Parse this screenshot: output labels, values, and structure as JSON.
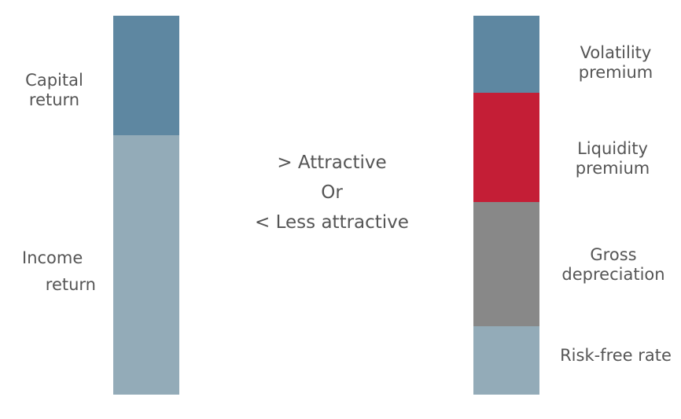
{
  "left_bar": {
    "segments": [
      {
        "name": "capital-return",
        "color": "#5e87a1"
      },
      {
        "name": "income-return",
        "color": "#93abb8"
      }
    ],
    "labels": {
      "capital_line1": "Capital",
      "capital_line2": "return",
      "income_line1": "Income",
      "income_line2": "return"
    }
  },
  "center": {
    "line1": "> Attractive",
    "line2": "Or",
    "line3": "< Less attractive"
  },
  "right_bar": {
    "segments": [
      {
        "name": "volatility-premium",
        "color": "#5e87a1"
      },
      {
        "name": "liquidity-premium",
        "color": "#c41e36"
      },
      {
        "name": "gross-depreciation",
        "color": "#888888"
      },
      {
        "name": "risk-free-rate",
        "color": "#93abb8"
      }
    ],
    "labels": {
      "volatility_line1": "Volatility",
      "volatility_line2": "premium",
      "liquidity_line1": "Liquidity",
      "liquidity_line2": "premium",
      "gross_line1": "Gross",
      "gross_line2": "depreciation",
      "riskfree": "Risk-free rate"
    }
  }
}
